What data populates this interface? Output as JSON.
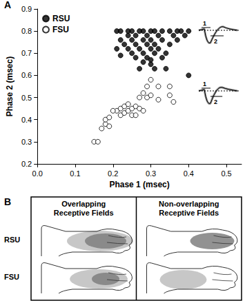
{
  "chart_data": {
    "type": "scatter",
    "xlabel": "Phase 1 (msec)",
    "ylabel": "Phase 2 (msec)",
    "xlim": [
      0,
      0.54
    ],
    "xticks": [
      {
        "value": 0,
        "label": "0.0"
      },
      0.1,
      0.2,
      0.3,
      0.4,
      0.5
    ],
    "ylim": [
      0.2,
      0.9
    ],
    "yticks": [
      0.2,
      0.3,
      0.4,
      0.5,
      0.6,
      0.7,
      0.8,
      0.9
    ],
    "grid": false,
    "legend": "upper left",
    "series": [
      {
        "name": "RSU",
        "color": "#000000",
        "marker": "circle",
        "x": [
          0.21,
          0.22,
          0.24,
          0.25,
          0.27,
          0.28,
          0.3,
          0.31,
          0.33,
          0.35,
          0.37,
          0.38,
          0.4,
          0.24,
          0.26,
          0.29,
          0.32,
          0.36,
          0.39,
          0.22,
          0.25,
          0.28,
          0.3,
          0.33,
          0.37,
          0.23,
          0.26,
          0.29,
          0.31,
          0.35,
          0.21,
          0.27,
          0.3,
          0.32,
          0.25,
          0.28,
          0.31,
          0.34,
          0.22,
          0.26,
          0.29,
          0.33,
          0.28,
          0.3,
          0.27,
          0.31,
          0.34,
          0.4,
          0.3,
          0.24
        ],
        "values": [
          0.8,
          0.8,
          0.8,
          0.8,
          0.8,
          0.8,
          0.8,
          0.8,
          0.8,
          0.8,
          0.8,
          0.8,
          0.8,
          0.78,
          0.78,
          0.78,
          0.78,
          0.78,
          0.78,
          0.76,
          0.76,
          0.76,
          0.76,
          0.76,
          0.76,
          0.74,
          0.74,
          0.74,
          0.74,
          0.74,
          0.72,
          0.72,
          0.72,
          0.72,
          0.7,
          0.7,
          0.7,
          0.7,
          0.69,
          0.68,
          0.68,
          0.68,
          0.66,
          0.65,
          0.63,
          0.63,
          0.63,
          0.6,
          0.67,
          0.72
        ]
      },
      {
        "name": "FSU",
        "color": "#000000",
        "marker": "open_circle",
        "x": [
          0.15,
          0.16,
          0.17,
          0.18,
          0.19,
          0.18,
          0.19,
          0.21,
          0.22,
          0.22,
          0.23,
          0.23,
          0.24,
          0.24,
          0.25,
          0.25,
          0.26,
          0.27,
          0.28,
          0.27,
          0.28,
          0.29,
          0.29,
          0.3,
          0.3,
          0.32,
          0.32,
          0.35,
          0.35,
          0.36,
          0.26,
          0.2
        ],
        "values": [
          0.3,
          0.3,
          0.36,
          0.38,
          0.37,
          0.4,
          0.41,
          0.44,
          0.42,
          0.45,
          0.43,
          0.46,
          0.44,
          0.47,
          0.45,
          0.42,
          0.46,
          0.45,
          0.44,
          0.5,
          0.52,
          0.5,
          0.55,
          0.51,
          0.58,
          0.55,
          0.49,
          0.55,
          0.51,
          0.48,
          0.42,
          0.44
        ]
      }
    ]
  },
  "panel_labels": [
    "A",
    "B"
  ],
  "insets": [
    {
      "labels": [
        "1",
        "2"
      ]
    },
    {
      "labels": [
        "1",
        "2"
      ]
    }
  ],
  "diagram": {
    "columns": [
      [
        "Overlapping",
        "Receptive Fields"
      ],
      [
        "Non-overlapping",
        "Receptive Fields"
      ]
    ],
    "rows": [
      "RSU",
      "FSU"
    ]
  }
}
